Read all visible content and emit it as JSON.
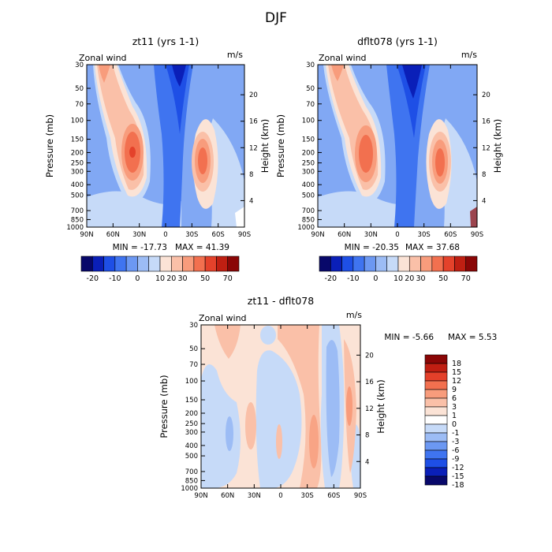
{
  "figure_title": "DJF",
  "chart_data": [
    {
      "type": "heatmap",
      "id": "zt11",
      "title": "zt11 (yrs 1-1)",
      "field": "Zonal wind",
      "units": "m/s",
      "ylabel": "Pressure (mb)",
      "y2label": "Height (km)",
      "x_ticks": [
        "90N",
        "60N",
        "30N",
        "0",
        "30S",
        "60S",
        "90S"
      ],
      "x_values": [
        90,
        60,
        30,
        0,
        -30,
        -60,
        -90
      ],
      "y_ticks": [
        "30",
        "50",
        "70",
        "100",
        "150",
        "200",
        "250",
        "300",
        "400",
        "500",
        "700",
        "850",
        "1000"
      ],
      "y_values": [
        30,
        50,
        70,
        100,
        150,
        200,
        250,
        300,
        400,
        500,
        700,
        850,
        1000
      ],
      "y2_ticks": [
        "20",
        "16",
        "12",
        "8",
        "4"
      ],
      "y2_values": [
        20,
        16,
        12,
        8,
        4
      ],
      "min_text": "MIN = -17.73",
      "max_text": "MAX = 41.39",
      "min": -17.73,
      "max": 41.39,
      "colorbar_labels": [
        "-20",
        "-10",
        "0",
        "10",
        "20",
        "30",
        "50",
        "70"
      ]
    },
    {
      "type": "heatmap",
      "id": "dflt078",
      "title": "dflt078 (yrs 1-1)",
      "field": "Zonal wind",
      "units": "m/s",
      "ylabel": "Pressure (mb)",
      "y2label": "Height (km)",
      "x_ticks": [
        "90N",
        "60N",
        "30N",
        "0",
        "30S",
        "60S",
        "90S"
      ],
      "x_values": [
        90,
        60,
        30,
        0,
        -30,
        -60,
        -90
      ],
      "y_ticks": [
        "30",
        "50",
        "70",
        "100",
        "150",
        "200",
        "250",
        "300",
        "400",
        "500",
        "700",
        "850",
        "1000"
      ],
      "y_values": [
        30,
        50,
        70,
        100,
        150,
        200,
        250,
        300,
        400,
        500,
        700,
        850,
        1000
      ],
      "y2_ticks": [
        "20",
        "16",
        "12",
        "8",
        "4"
      ],
      "y2_values": [
        20,
        16,
        12,
        8,
        4
      ],
      "min_text": "MIN = -20.35",
      "max_text": "MAX = 37.68",
      "min": -20.35,
      "max": 37.68,
      "colorbar_labels": [
        "-20",
        "-10",
        "0",
        "10",
        "20",
        "30",
        "50",
        "70"
      ]
    },
    {
      "type": "heatmap",
      "id": "diff",
      "title": "zt11 - dflt078",
      "field": "Zonal wind",
      "units": "m/s",
      "ylabel": "Pressure (mb)",
      "y2label": "Height (km)",
      "x_ticks": [
        "90N",
        "60N",
        "30N",
        "0",
        "30S",
        "60S",
        "90S"
      ],
      "x_values": [
        90,
        60,
        30,
        0,
        -30,
        -60,
        -90
      ],
      "y_ticks": [
        "30",
        "50",
        "70",
        "100",
        "150",
        "200",
        "250",
        "300",
        "400",
        "500",
        "700",
        "850",
        "1000"
      ],
      "y_values": [
        30,
        50,
        70,
        100,
        150,
        200,
        250,
        300,
        400,
        500,
        700,
        850,
        1000
      ],
      "y2_ticks": [
        "20",
        "16",
        "12",
        "8",
        "4"
      ],
      "y2_values": [
        20,
        16,
        12,
        8,
        4
      ],
      "min_text": "MIN =  -5.66",
      "max_text": "MAX =  5.53",
      "min": -5.66,
      "max": 5.53,
      "colorbar_labels": [
        "18",
        "15",
        "12",
        "9",
        "6",
        "3",
        "1",
        "0",
        "-1",
        "-3",
        "-6",
        "-9",
        "-12",
        "-15",
        "-18"
      ]
    }
  ],
  "palette_main": [
    "#08086a",
    "#0a1fb8",
    "#1e4fe6",
    "#3f74f0",
    "#6c98f2",
    "#9cbcf5",
    "#c6daf8",
    "#fbe3d6",
    "#fac0a8",
    "#f89c7c",
    "#f2704f",
    "#e4422b",
    "#bf1f12",
    "#8a0606"
  ],
  "palette_diff": [
    "#8a0606",
    "#c01e12",
    "#e4402a",
    "#f2704f",
    "#f89c7c",
    "#fac0a8",
    "#fbe3d6",
    "#ffffff",
    "#c6daf8",
    "#9cbcf5",
    "#6c98f2",
    "#3f74f0",
    "#1e4fe6",
    "#0a1fb8",
    "#08086a"
  ]
}
